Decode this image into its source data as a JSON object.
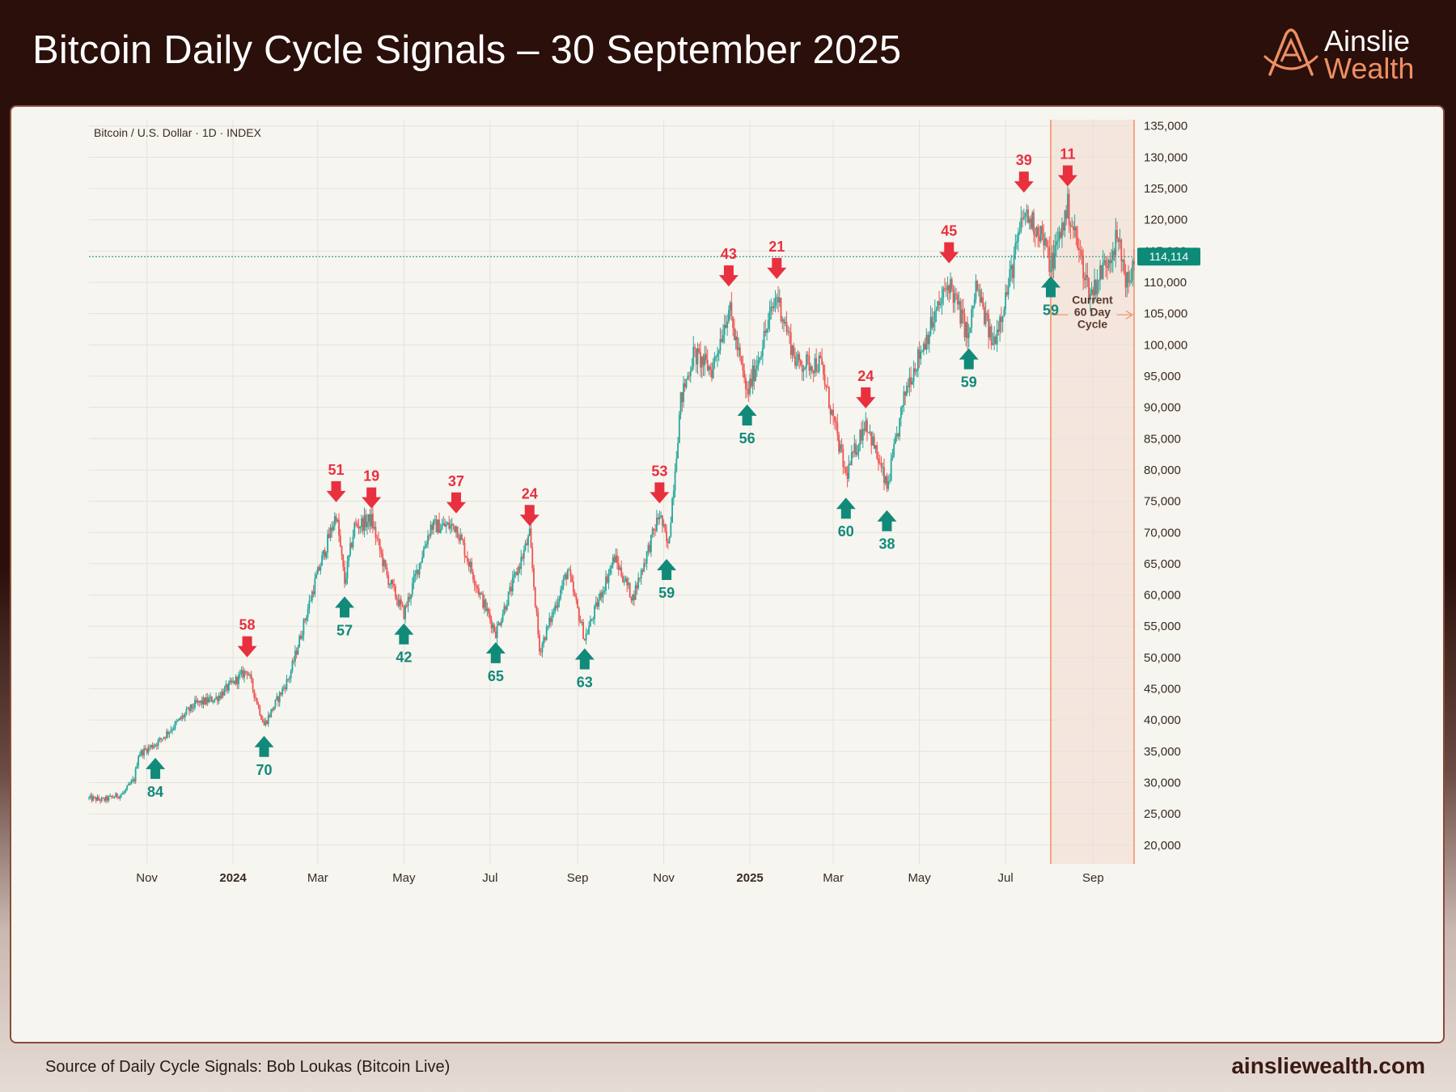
{
  "header": {
    "title": "Bitcoin Daily Cycle Signals – 30 September 2025",
    "logo_line1": "Ainslie",
    "logo_line2": "Wealth"
  },
  "footer": {
    "source": "Source of Daily Cycle Signals: Bob Loukas (Bitcoin Live)",
    "website": "ainsliewealth.com"
  },
  "colors": {
    "up": "#26a69a",
    "down": "#ef5350",
    "signal_low": "#128a7a",
    "signal_high": "#e8303f",
    "cycle_shade": "#f5e6dd",
    "cycle_line": "#ee8f63",
    "accent": "#ee8f63"
  },
  "chart_data": {
    "type": "candlestick",
    "series_label": "Bitcoin / U.S. Dollar · 1D · INDEX",
    "x_range": [
      "2023-09-21",
      "2025-09-30"
    ],
    "y_range": [
      17000,
      136000
    ],
    "log_scale": false,
    "grid": true,
    "y_ticks": [
      20000,
      25000,
      30000,
      35000,
      40000,
      45000,
      50000,
      55000,
      60000,
      65000,
      70000,
      75000,
      80000,
      85000,
      90000,
      95000,
      100000,
      105000,
      110000,
      115000,
      120000,
      125000,
      130000,
      135000
    ],
    "y_tick_labels": [
      "20,000",
      "25,000",
      "30,000",
      "35,000",
      "40,000",
      "45,000",
      "50,000",
      "55,000",
      "60,000",
      "65,000",
      "70,000",
      "75,000",
      "80,000",
      "85,000",
      "90,000",
      "95,000",
      "100,000",
      "105,000",
      "110,000",
      "115,000",
      "120,000",
      "125,000",
      "130,000",
      "135,000"
    ],
    "x_ticks": [
      {
        "date": "2023-11-01",
        "label": "Nov",
        "bold": false
      },
      {
        "date": "2024-01-01",
        "label": "2024",
        "bold": true
      },
      {
        "date": "2024-03-01",
        "label": "Mar",
        "bold": false
      },
      {
        "date": "2024-05-01",
        "label": "May",
        "bold": false
      },
      {
        "date": "2024-07-01",
        "label": "Jul",
        "bold": false
      },
      {
        "date": "2024-09-01",
        "label": "Sep",
        "bold": false
      },
      {
        "date": "2024-11-01",
        "label": "Nov",
        "bold": false
      },
      {
        "date": "2025-01-01",
        "label": "2025",
        "bold": true
      },
      {
        "date": "2025-03-01",
        "label": "Mar",
        "bold": false
      },
      {
        "date": "2025-05-01",
        "label": "May",
        "bold": false
      },
      {
        "date": "2025-07-01",
        "label": "Jul",
        "bold": false
      },
      {
        "date": "2025-09-01",
        "label": "Sep",
        "bold": false
      }
    ],
    "last_price": 114114,
    "last_price_label": "114,114",
    "cycle_start": "2025-08-02",
    "cycle_label": [
      "Current",
      "60 Day",
      "Cycle"
    ],
    "price_path": [
      [
        "2023-09-21",
        27500
      ],
      [
        "2023-10-01",
        27200
      ],
      [
        "2023-10-15",
        28200
      ],
      [
        "2023-10-23",
        30500
      ],
      [
        "2023-10-26",
        34500
      ],
      [
        "2023-11-09",
        36500
      ],
      [
        "2023-12-05",
        42500
      ],
      [
        "2023-12-20",
        43500
      ],
      [
        "2024-01-11",
        48000
      ],
      [
        "2024-01-23",
        39200
      ],
      [
        "2024-02-10",
        47000
      ],
      [
        "2024-02-28",
        62000
      ],
      [
        "2024-03-14",
        73000
      ],
      [
        "2024-03-20",
        62000
      ],
      [
        "2024-03-27",
        71000
      ],
      [
        "2024-04-08",
        72000
      ],
      [
        "2024-04-19",
        63000
      ],
      [
        "2024-05-01",
        57000
      ],
      [
        "2024-05-20",
        71000
      ],
      [
        "2024-06-07",
        71000
      ],
      [
        "2024-06-24",
        60000
      ],
      [
        "2024-07-05",
        54000
      ],
      [
        "2024-07-29",
        69500
      ],
      [
        "2024-08-05",
        51000
      ],
      [
        "2024-08-25",
        64000
      ],
      [
        "2024-09-06",
        53000
      ],
      [
        "2024-09-27",
        66000
      ],
      [
        "2024-10-10",
        59500
      ],
      [
        "2024-10-29",
        73000
      ],
      [
        "2024-11-04",
        67500
      ],
      [
        "2024-11-13",
        91000
      ],
      [
        "2024-11-22",
        98500
      ],
      [
        "2024-12-05",
        96000
      ],
      [
        "2024-12-17",
        106000
      ],
      [
        "2024-12-30",
        92000
      ],
      [
        "2025-01-20",
        108000
      ],
      [
        "2025-02-03",
        97000
      ],
      [
        "2025-02-20",
        97000
      ],
      [
        "2025-03-10",
        79000
      ],
      [
        "2025-03-24",
        88000
      ],
      [
        "2025-04-08",
        77000
      ],
      [
        "2025-04-22",
        93500
      ],
      [
        "2025-05-10",
        103500
      ],
      [
        "2025-05-22",
        110000
      ],
      [
        "2025-06-05",
        101000
      ],
      [
        "2025-06-10",
        109500
      ],
      [
        "2025-06-22",
        100000
      ],
      [
        "2025-07-03",
        109500
      ],
      [
        "2025-07-14",
        121000
      ],
      [
        "2025-07-26",
        118000
      ],
      [
        "2025-08-02",
        112500
      ],
      [
        "2025-08-14",
        122000
      ],
      [
        "2025-08-30",
        108000
      ],
      [
        "2025-09-18",
        117000
      ],
      [
        "2025-09-26",
        109000
      ],
      [
        "2025-09-30",
        114114
      ]
    ],
    "signals": [
      {
        "type": "low",
        "label": "84",
        "date": "2023-11-07",
        "price": 35000
      },
      {
        "type": "high",
        "label": "58",
        "date": "2024-01-11",
        "price": 49000
      },
      {
        "type": "low",
        "label": "70",
        "date": "2024-01-23",
        "price": 38500
      },
      {
        "type": "high",
        "label": "51",
        "date": "2024-03-14",
        "price": 73800
      },
      {
        "type": "low",
        "label": "57",
        "date": "2024-03-20",
        "price": 60800
      },
      {
        "type": "high",
        "label": "19",
        "date": "2024-04-08",
        "price": 72800
      },
      {
        "type": "low",
        "label": "42",
        "date": "2024-05-01",
        "price": 56500
      },
      {
        "type": "high",
        "label": "37",
        "date": "2024-06-07",
        "price": 72000
      },
      {
        "type": "low",
        "label": "65",
        "date": "2024-07-05",
        "price": 53500
      },
      {
        "type": "high",
        "label": "24",
        "date": "2024-07-29",
        "price": 70000
      },
      {
        "type": "low",
        "label": "63",
        "date": "2024-09-06",
        "price": 52500
      },
      {
        "type": "high",
        "label": "53",
        "date": "2024-10-29",
        "price": 73600
      },
      {
        "type": "low",
        "label": "59",
        "date": "2024-11-03",
        "price": 66800
      },
      {
        "type": "high",
        "label": "43",
        "date": "2024-12-17",
        "price": 108300
      },
      {
        "type": "low",
        "label": "56",
        "date": "2024-12-30",
        "price": 91500
      },
      {
        "type": "high",
        "label": "21",
        "date": "2025-01-20",
        "price": 109500
      },
      {
        "type": "low",
        "label": "60",
        "date": "2025-03-10",
        "price": 76600
      },
      {
        "type": "high",
        "label": "24",
        "date": "2025-03-24",
        "price": 88800
      },
      {
        "type": "low",
        "label": "38",
        "date": "2025-04-08",
        "price": 74600
      },
      {
        "type": "high",
        "label": "45",
        "date": "2025-05-22",
        "price": 112000
      },
      {
        "type": "low",
        "label": "59",
        "date": "2025-06-05",
        "price": 100500
      },
      {
        "type": "high",
        "label": "39",
        "date": "2025-07-14",
        "price": 123300
      },
      {
        "type": "low",
        "label": "59",
        "date": "2025-08-02",
        "price": 112000
      },
      {
        "type": "high",
        "label": "11",
        "date": "2025-08-14",
        "price": 124300
      }
    ]
  }
}
